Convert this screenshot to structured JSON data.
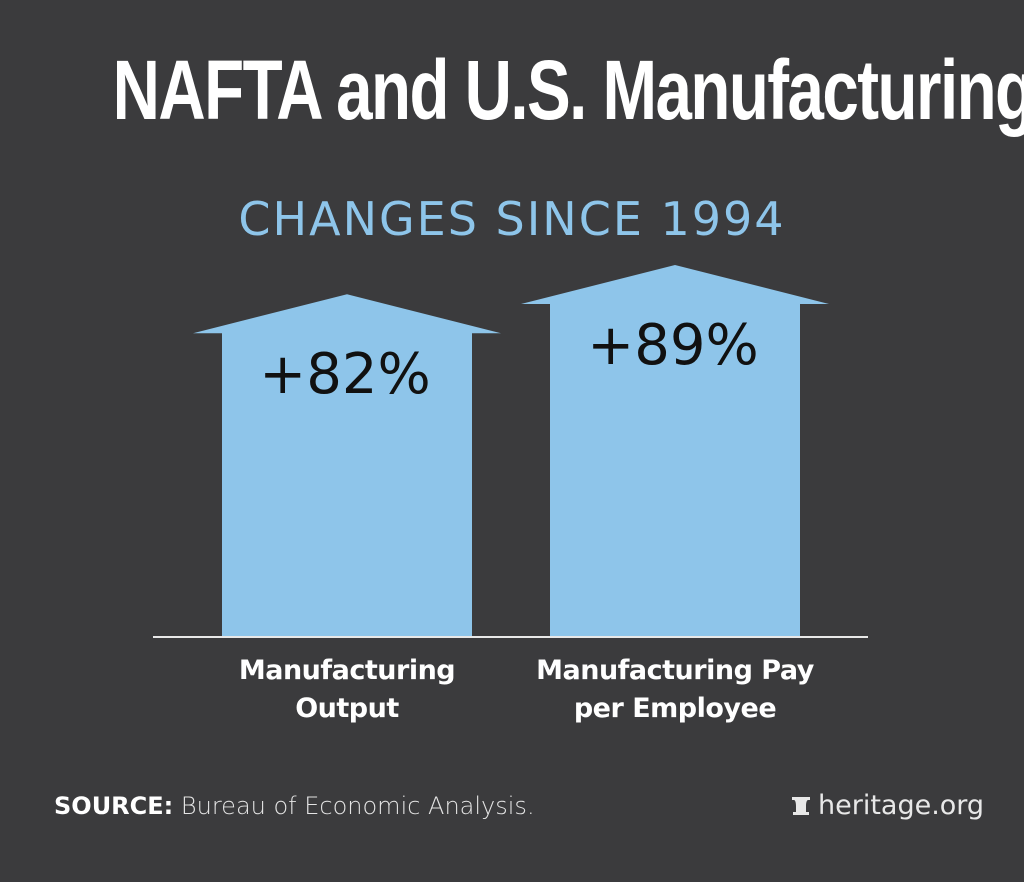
{
  "chart_data": {
    "type": "bar",
    "title": "NAFTA and U.S. Manufacturing",
    "subtitle": "CHANGES SINCE 1994",
    "categories": [
      "Manufacturing Output",
      "Manufacturing Pay per Employee"
    ],
    "category_lines": [
      [
        "Manufacturing",
        "Output"
      ],
      [
        "Manufacturing Pay",
        "per Employee"
      ]
    ],
    "values": [
      82,
      89
    ],
    "data_labels": [
      "+82%",
      "+89%"
    ],
    "unit": "%",
    "xlabel": "",
    "ylabel": "",
    "ylim": [
      0,
      90
    ],
    "grid": false,
    "bar_color": "#8ec5ea"
  },
  "footer": {
    "source_label": "SOURCE:",
    "source_text": "Bureau of Economic Analysis.",
    "logo_text": "heritage.org"
  }
}
